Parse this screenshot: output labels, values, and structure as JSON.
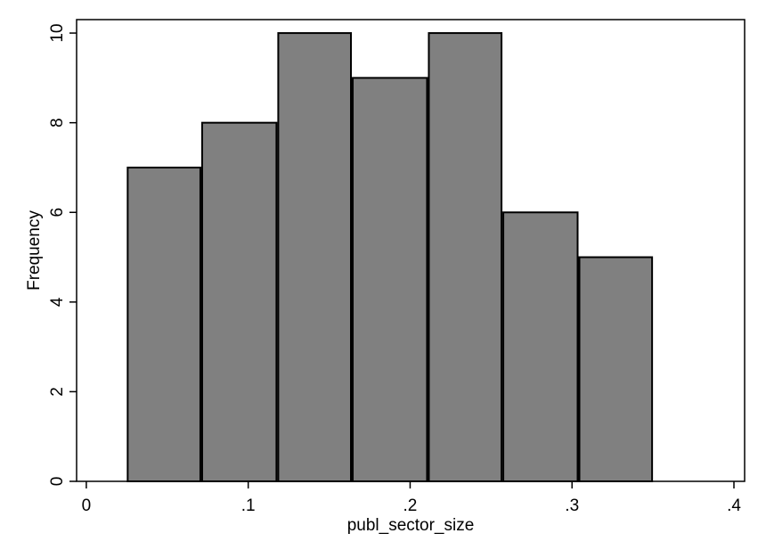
{
  "chart_data": {
    "type": "histogram",
    "x_label": "publ_sector_size",
    "y_label": "Frequency",
    "bins": [
      0.025,
      0.071,
      0.118,
      0.164,
      0.211,
      0.257,
      0.304,
      0.35
    ],
    "values": [
      7,
      8,
      10,
      9,
      10,
      6,
      5
    ],
    "color": "#808080",
    "xlim": [
      -0.006,
      0.4066
    ],
    "ylim": [
      0,
      10.3
    ],
    "xticks": [
      0,
      {
        "value": 0.1,
        "label": ".1"
      },
      {
        "value": 0.2,
        "label": ".2"
      },
      {
        "value": 0.3,
        "label": ".3"
      },
      {
        "value": 0.4,
        "label": ".4"
      }
    ],
    "yticks": [
      0,
      2,
      4,
      6,
      8,
      10
    ]
  }
}
